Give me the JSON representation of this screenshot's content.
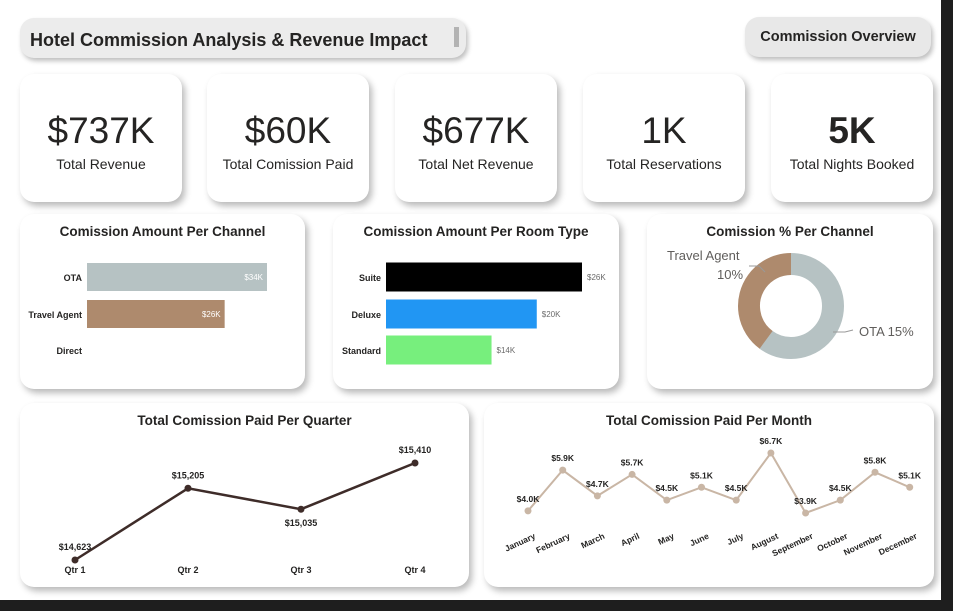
{
  "header": {
    "title": "Hotel Commission Analysis & Revenue Impact",
    "nav_button": "Commission Overview"
  },
  "kpis": [
    {
      "value": "$737K",
      "label": "Total Revenue"
    },
    {
      "value": "$60K",
      "label": "Total Comission Paid"
    },
    {
      "value": "$677K",
      "label": "Total Net Revenue"
    },
    {
      "value": "1K",
      "label": "Total Reservations"
    },
    {
      "value": "5K",
      "label": "Total Nights Booked"
    }
  ],
  "colors": {
    "ota": "#b6c2c3",
    "travel_agent": "#ae8a6d",
    "suite": "#000000",
    "deluxe": "#2196f3",
    "standard": "#77ef7d",
    "line_dark": "#3e2c29",
    "line_light": "#c9b6a5"
  },
  "chart_data": [
    {
      "type": "bar",
      "title": "Comission Amount Per Channel",
      "categories": [
        "OTA",
        "Travel Agent",
        "Direct"
      ],
      "values": [
        34,
        26,
        0
      ],
      "value_labels": [
        "$34K",
        "$26K",
        ""
      ],
      "orientation": "horizontal",
      "xlim": [
        0,
        34
      ]
    },
    {
      "type": "bar",
      "title": "Comission Amount Per Room Type",
      "categories": [
        "Suite",
        "Deluxe",
        "Standard"
      ],
      "values": [
        26,
        20,
        14
      ],
      "value_labels": [
        "$26K",
        "$20K",
        "$14K"
      ],
      "orientation": "horizontal",
      "xlim": [
        0,
        26
      ]
    },
    {
      "type": "pie",
      "title": "Comission % Per Channel",
      "donut": true,
      "slices": [
        {
          "name": "Travel Agent",
          "label": "10%",
          "value": 10
        },
        {
          "name": "OTA",
          "label": "15%",
          "value": 15
        }
      ]
    },
    {
      "type": "line",
      "title": "Total Comission Paid Per Quarter",
      "categories": [
        "Qtr 1",
        "Qtr 2",
        "Qtr 3",
        "Qtr 4"
      ],
      "values": [
        14623,
        15205,
        15035,
        15410
      ],
      "value_labels": [
        "$14,623",
        "$15,205",
        "$15,035",
        "$15,410"
      ],
      "ylim": [
        14623,
        15410
      ]
    },
    {
      "type": "line",
      "title": "Total Comission Paid Per Month",
      "categories": [
        "January",
        "February",
        "March",
        "April",
        "May",
        "June",
        "July",
        "August",
        "September",
        "October",
        "November",
        "December"
      ],
      "values": [
        4.0,
        5.9,
        4.7,
        5.7,
        4.5,
        5.1,
        4.5,
        6.7,
        3.9,
        4.5,
        5.8,
        5.1
      ],
      "value_labels": [
        "$4.0K",
        "$5.9K",
        "$4.7K",
        "$5.7K",
        "$4.5K",
        "$5.1K",
        "$4.5K",
        "$6.7K",
        "$3.9K",
        "$4.5K",
        "$5.8K",
        "$5.1K"
      ],
      "ylim": [
        3.9,
        6.7
      ]
    }
  ]
}
